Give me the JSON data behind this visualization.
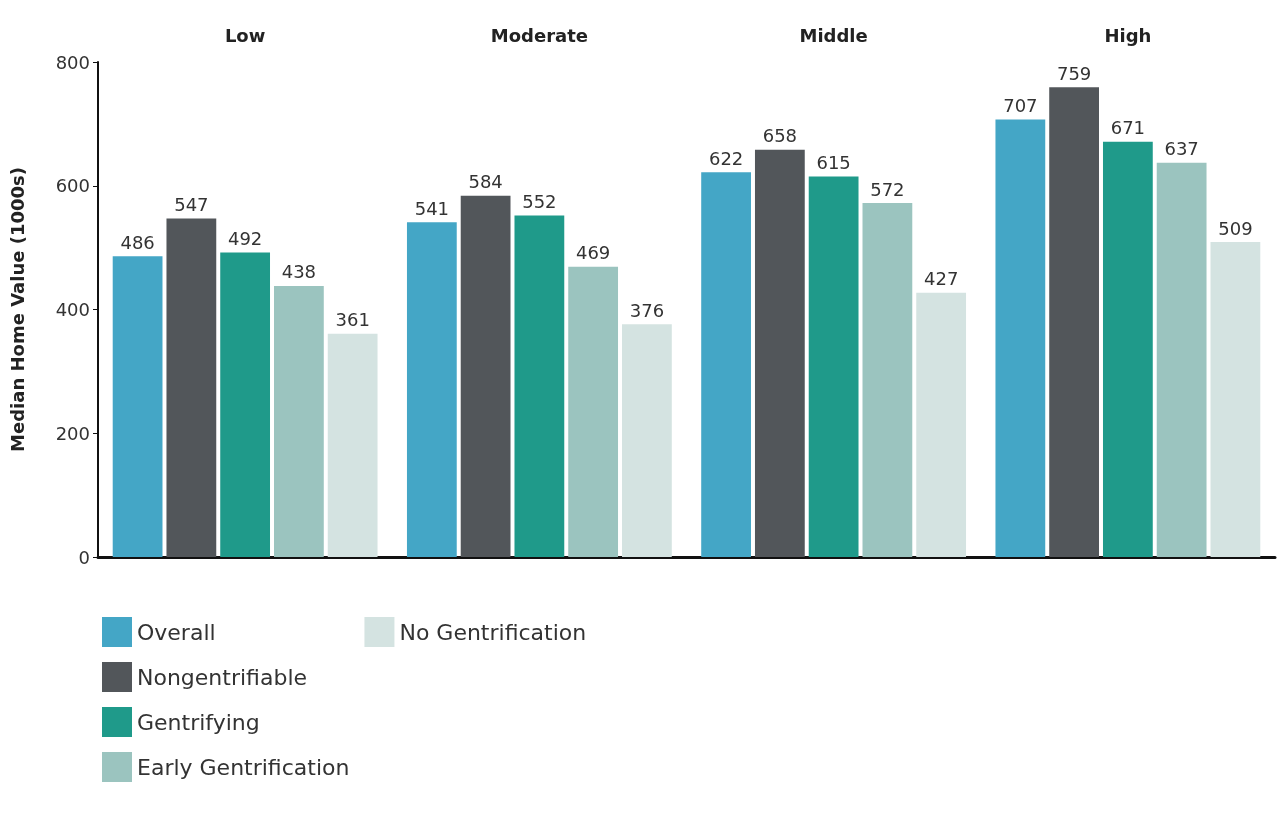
{
  "chart_data": {
    "type": "bar",
    "ylabel": "Median Home Value (1000s)",
    "categories": [
      "Low",
      "Moderate",
      "Middle",
      "High"
    ],
    "series": [
      {
        "name": "Overall",
        "color": "#44a6c6",
        "values": [
          486,
          541,
          622,
          707
        ]
      },
      {
        "name": "Nongentrifiable",
        "color": "#52565a",
        "values": [
          547,
          584,
          658,
          759
        ]
      },
      {
        "name": "Gentrifying",
        "color": "#1f9a8a",
        "values": [
          492,
          552,
          615,
          671
        ]
      },
      {
        "name": "Early Gentrification",
        "color": "#9bc4bf",
        "values": [
          438,
          469,
          572,
          637
        ]
      },
      {
        "name": "No Gentrification",
        "color": "#d4e3e1",
        "values": [
          361,
          376,
          427,
          509
        ]
      }
    ],
    "ylim": [
      0,
      800
    ],
    "yticks": [
      0,
      200,
      400,
      600,
      800
    ],
    "grid": false,
    "legend": "bottom left",
    "data_labels": true
  }
}
